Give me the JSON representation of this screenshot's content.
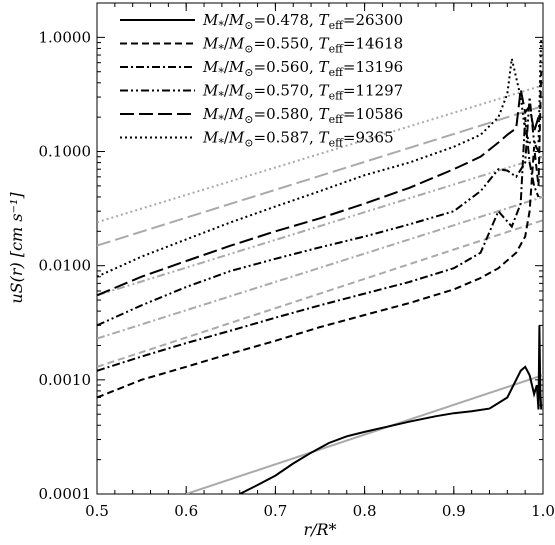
{
  "chart_data": {
    "type": "line",
    "xlabel": "r/R*",
    "ylabel": "uS(r) [cm s⁻¹]",
    "xlim": [
      0.5,
      1.0
    ],
    "ylim": [
      0.0001,
      2.0
    ],
    "yscale": "log",
    "grid": false,
    "legend_position": "top-left",
    "x_ticks": [
      0.5,
      0.6,
      0.7,
      0.8,
      0.9,
      1.0
    ],
    "x_tick_labels": [
      "0.5",
      "0.6",
      "0.7",
      "0.8",
      "0.9",
      "1.0"
    ],
    "y_ticks": [
      0.0001,
      0.001,
      0.01,
      0.1,
      1.0
    ],
    "y_tick_labels": [
      "0.0001",
      "0.0010",
      "0.0100",
      "0.1000",
      "1.0000"
    ],
    "colors": {
      "model": "#000000",
      "fit": "#aaaaaa"
    },
    "series": [
      {
        "mass": "0.478",
        "teff": "26300",
        "dash": "solid",
        "x": [
          0.66,
          0.68,
          0.7,
          0.72,
          0.74,
          0.76,
          0.78,
          0.8,
          0.82,
          0.85,
          0.88,
          0.9,
          0.92,
          0.94,
          0.96,
          0.975,
          0.98,
          0.985,
          0.99,
          0.993,
          0.995,
          0.996,
          0.997,
          0.998
        ],
        "y": [
          0.0001,
          0.00012,
          0.000145,
          0.000185,
          0.00023,
          0.00028,
          0.00032,
          0.00035,
          0.00038,
          0.00043,
          0.00048,
          0.00051,
          0.00053,
          0.00056,
          0.0007,
          0.0012,
          0.0013,
          0.0011,
          0.00075,
          0.0009,
          0.00055,
          0.003,
          0.0008,
          0.00055
        ],
        "fit": {
          "x": [
            0.6,
            1.0
          ],
          "y": [
            0.0001,
            0.0011
          ]
        }
      },
      {
        "mass": "0.550",
        "teff": "14618",
        "dash": "dashed",
        "x": [
          0.5,
          0.55,
          0.6,
          0.65,
          0.7,
          0.75,
          0.8,
          0.85,
          0.9,
          0.93,
          0.95,
          0.97,
          0.98,
          0.985,
          0.99,
          0.995,
          0.998
        ],
        "y": [
          0.0007,
          0.001,
          0.0013,
          0.0017,
          0.0022,
          0.0029,
          0.0037,
          0.0047,
          0.0062,
          0.0078,
          0.0095,
          0.013,
          0.018,
          0.03,
          0.11,
          0.05,
          0.5
        ],
        "fit": {
          "x": [
            0.5,
            1.0
          ],
          "y": [
            0.0013,
            0.025
          ]
        }
      },
      {
        "mass": "0.560",
        "teff": "13196",
        "dash": "dashdot",
        "x": [
          0.5,
          0.55,
          0.6,
          0.65,
          0.7,
          0.75,
          0.8,
          0.85,
          0.9,
          0.93,
          0.95,
          0.965,
          0.975,
          0.98,
          0.985,
          0.99,
          0.995
        ],
        "y": [
          0.0012,
          0.0016,
          0.0021,
          0.0027,
          0.0035,
          0.0045,
          0.0057,
          0.0072,
          0.0095,
          0.013,
          0.03,
          0.022,
          0.035,
          0.2,
          0.08,
          0.05,
          0.04
        ],
        "fit": {
          "x": [
            0.5,
            1.0
          ],
          "y": [
            0.0023,
            0.04
          ]
        }
      },
      {
        "mass": "0.570",
        "teff": "11297",
        "dash": "dashdotdot",
        "x": [
          0.5,
          0.55,
          0.6,
          0.65,
          0.7,
          0.75,
          0.8,
          0.85,
          0.9,
          0.93,
          0.95,
          0.96,
          0.97,
          0.98,
          0.985,
          0.99,
          0.995
        ],
        "y": [
          0.003,
          0.0045,
          0.0065,
          0.009,
          0.0115,
          0.0145,
          0.018,
          0.023,
          0.03,
          0.045,
          0.07,
          0.068,
          0.06,
          0.08,
          0.3,
          0.12,
          0.1
        ],
        "fit": {
          "x": [
            0.5,
            1.0
          ],
          "y": [
            0.0055,
            0.09
          ]
        }
      },
      {
        "mass": "0.580",
        "teff": "10586",
        "dash": "longdash",
        "x": [
          0.5,
          0.55,
          0.6,
          0.65,
          0.7,
          0.75,
          0.8,
          0.85,
          0.9,
          0.93,
          0.95,
          0.96,
          0.97,
          0.975,
          0.98,
          0.985,
          0.99,
          0.995
        ],
        "y": [
          0.0055,
          0.008,
          0.011,
          0.015,
          0.02,
          0.026,
          0.035,
          0.048,
          0.07,
          0.09,
          0.12,
          0.14,
          0.16,
          0.35,
          0.22,
          0.25,
          0.15,
          0.2
        ],
        "fit": {
          "x": [
            0.5,
            1.0
          ],
          "y": [
            0.015,
            0.25
          ]
        }
      },
      {
        "mass": "0.587",
        "teff": "9365",
        "dash": "dotted",
        "x": [
          0.5,
          0.55,
          0.6,
          0.65,
          0.7,
          0.75,
          0.8,
          0.85,
          0.9,
          0.93,
          0.95,
          0.96,
          0.965,
          0.975,
          0.98,
          0.985,
          0.99,
          0.995,
          0.998
        ],
        "y": [
          0.008,
          0.012,
          0.017,
          0.024,
          0.033,
          0.045,
          0.062,
          0.08,
          0.11,
          0.14,
          0.2,
          0.32,
          0.65,
          0.3,
          0.15,
          0.12,
          0.12,
          0.12,
          1.0
        ],
        "fit": {
          "x": [
            0.5,
            1.0
          ],
          "y": [
            0.024,
            0.38
          ]
        }
      }
    ]
  }
}
